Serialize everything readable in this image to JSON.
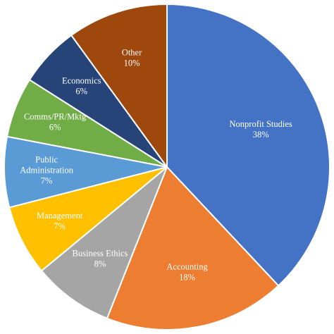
{
  "chart_data": {
    "type": "pie",
    "title": "",
    "slices": [
      {
        "label": "Nonprofit Studies",
        "value": 38,
        "display": "38%",
        "color": "#4472C4",
        "label_color": "#ffffff"
      },
      {
        "label": "Accounting",
        "value": 18,
        "display": "18%",
        "color": "#ED7D31",
        "label_color": "#ffffff"
      },
      {
        "label": "Business Ethics",
        "value": 8,
        "display": "8%",
        "color": "#A5A5A5",
        "label_color": "#ffffff"
      },
      {
        "label": "Management",
        "value": 7,
        "display": "7%",
        "color": "#FFC000",
        "label_color": "#ffffff"
      },
      {
        "label": "Public Administration",
        "value": 7,
        "display": "7%",
        "color": "#5B9BD5",
        "label_color": "#ffffff"
      },
      {
        "label": "Comms/PR/Mktg",
        "value": 6,
        "display": "6%",
        "color": "#70AD47",
        "label_color": "#ffffff"
      },
      {
        "label": "Economics",
        "value": 6,
        "display": "6%",
        "color": "#264478",
        "label_color": "#ffffff"
      },
      {
        "label": "Other",
        "value": 10,
        "display": "10%",
        "color": "#9E480E",
        "label_color": "#ffffff"
      }
    ],
    "start_angle_deg": 0,
    "direction": "clockwise",
    "legend": "none",
    "data_labels": "inside"
  }
}
